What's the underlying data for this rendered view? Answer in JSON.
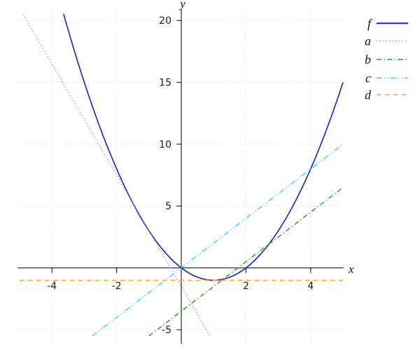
{
  "axis": {
    "x_label": "x",
    "y_label": "y"
  },
  "chart_data": {
    "type": "line",
    "title": "",
    "grid": true,
    "legend_position": "top-right",
    "xlim": [
      -5.1,
      5.05
    ],
    "ylim": [
      -6.1,
      21.2
    ],
    "x_ticks": [
      {
        "value": -4,
        "label": "-4"
      },
      {
        "value": -2,
        "label": "-2"
      },
      {
        "value": 2,
        "label": "2"
      },
      {
        "value": 4,
        "label": "4"
      }
    ],
    "y_ticks": [
      {
        "value": 20,
        "label": "20"
      },
      {
        "value": 15,
        "label": "15"
      },
      {
        "value": 10,
        "label": "10"
      },
      {
        "value": 5,
        "label": "5"
      },
      {
        "value": -5,
        "label": "-5"
      }
    ],
    "series": [
      {
        "label": "f",
        "formula": "x^2 - 2x",
        "kind": "quadratic",
        "coeffs": [
          1,
          -2,
          0
        ],
        "x_range": [
          -3.64,
          5.0
        ],
        "style": "solid",
        "color": "#1d1dd2"
      },
      {
        "label": "a",
        "formula": "-4.5x - 1.5",
        "kind": "linear",
        "coeffs": [
          -4.5,
          -1.5
        ],
        "x_range": [
          -4.889,
          0.889
        ],
        "style": "dotted",
        "color": "#f17070"
      },
      {
        "label": "b",
        "formula": "2x - 3.5",
        "kind": "linear",
        "coeffs": [
          2,
          -3.5
        ],
        "x_range": [
          -1.0,
          5.0
        ],
        "style": "dashdot",
        "color": "#16a016"
      },
      {
        "label": "c",
        "formula": "2x",
        "kind": "linear",
        "coeffs": [
          2,
          0
        ],
        "x_range": [
          -2.75,
          5.0
        ],
        "style": "dashdotdot",
        "color": "#29d9ec"
      },
      {
        "label": "d",
        "formula": "-1",
        "kind": "linear",
        "coeffs": [
          0,
          -1
        ],
        "x_range": [
          -5.0,
          5.0
        ],
        "style": "dashed",
        "color": "#ffa228"
      }
    ]
  }
}
